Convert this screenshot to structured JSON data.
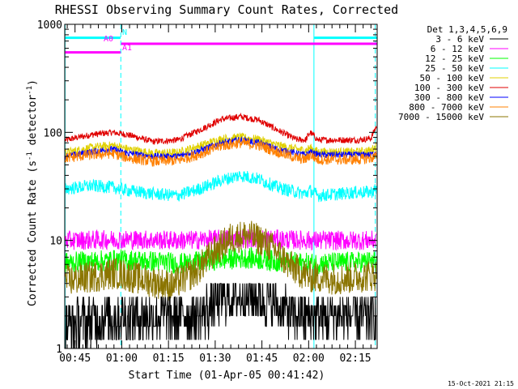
{
  "chart_data": {
    "type": "line",
    "title": "RHESSI Observing Summary Count Rates, Corrected",
    "xlabel": "Start Time (01-Apr-05 00:41:42)",
    "ylabel_main": "Corrected Count Rate (s",
    "ylabel_sup1": "-1",
    "ylabel_mid": " detector",
    "ylabel_sup2": "-1",
    "ylabel_end": ")",
    "yscale": "log",
    "xlim_min": [
      41.7,
      142.0
    ],
    "ylim": [
      1,
      1000
    ],
    "x_ticks": [
      {
        "t": 45,
        "label": "00:45"
      },
      {
        "t": 60,
        "label": "01:00"
      },
      {
        "t": 75,
        "label": "01:15"
      },
      {
        "t": 90,
        "label": "01:30"
      },
      {
        "t": 105,
        "label": "01:45"
      },
      {
        "t": 120,
        "label": "02:00"
      },
      {
        "t": 135,
        "label": "02:15"
      }
    ],
    "y_ticks": [
      {
        "v": 1,
        "label": "1"
      },
      {
        "v": 10,
        "label": "10"
      },
      {
        "v": 100,
        "label": "100"
      },
      {
        "v": 1000,
        "label": "1000"
      }
    ],
    "legend": {
      "placement": "right",
      "header": "Det 1,3,4,5,6,9",
      "entries": [
        {
          "label": "3 - 6 keV",
          "color": "#000000"
        },
        {
          "label": "6 - 12 keV",
          "color": "#ff00ff"
        },
        {
          "label": "12 - 25 keV",
          "color": "#00ff00"
        },
        {
          "label": "25 - 50 keV",
          "color": "#00ffff"
        },
        {
          "label": "50 - 100 keV",
          "color": "#e0d000"
        },
        {
          "label": "100 - 300 keV",
          "color": "#e00000"
        },
        {
          "label": "300 - 800 keV",
          "color": "#0000ff"
        },
        {
          "label": "800 - 7000 keV",
          "color": "#ff8000"
        },
        {
          "label": "7000 - 15000 keV",
          "color": "#8b7500"
        }
      ]
    },
    "flags": [
      {
        "label": "N",
        "color": "#00ffff",
        "segments": [
          [
            41.7,
            59.6
          ],
          [
            121.8,
            142.0
          ]
        ],
        "y": 750
      },
      {
        "label": "A0",
        "color": "#ff00ff",
        "segments": [
          [
            59.8,
            142.0
          ]
        ],
        "y": 660
      },
      {
        "label": "A1",
        "color": "#ff00ff",
        "segments": [
          [
            41.7,
            59.6
          ]
        ],
        "y": 550
      }
    ],
    "vlines": [
      {
        "t": 41.8,
        "color": "#00ffff",
        "style": "solid"
      },
      {
        "t": 59.7,
        "color": "#00ffff",
        "style": "dashed"
      },
      {
        "t": 121.7,
        "color": "#00ffff",
        "style": "solid"
      },
      {
        "t": 141.4,
        "color": "#00ffff",
        "style": "dashed"
      }
    ],
    "series": [
      {
        "color": "#e00000",
        "noise": 0.03,
        "points": [
          [
            42,
            85
          ],
          [
            50,
            95
          ],
          [
            57,
            100
          ],
          [
            62,
            95
          ],
          [
            70,
            82
          ],
          [
            78,
            85
          ],
          [
            85,
            105
          ],
          [
            92,
            132
          ],
          [
            98,
            140
          ],
          [
            104,
            130
          ],
          [
            110,
            105
          ],
          [
            116,
            86
          ],
          [
            119,
            85
          ],
          [
            120.5,
            100
          ],
          [
            123,
            85
          ],
          [
            130,
            85
          ],
          [
            136,
            85
          ],
          [
            140,
            88
          ],
          [
            141.8,
            115
          ]
        ]
      },
      {
        "color": "#e0d000",
        "noise": 0.04,
        "points": [
          [
            42,
            65
          ],
          [
            50,
            72
          ],
          [
            57,
            76
          ],
          [
            62,
            70
          ],
          [
            70,
            64
          ],
          [
            78,
            65
          ],
          [
            85,
            75
          ],
          [
            92,
            87
          ],
          [
            98,
            90
          ],
          [
            104,
            86
          ],
          [
            110,
            76
          ],
          [
            116,
            70
          ],
          [
            119,
            68
          ],
          [
            120.5,
            72
          ],
          [
            123,
            66
          ],
          [
            130,
            66
          ],
          [
            136,
            66
          ],
          [
            140,
            68
          ],
          [
            141.8,
            75
          ]
        ]
      },
      {
        "color": "#0000ff",
        "noise": 0.03,
        "points": [
          [
            42,
            60
          ],
          [
            50,
            66
          ],
          [
            57,
            70
          ],
          [
            62,
            64
          ],
          [
            70,
            60
          ],
          [
            78,
            60
          ],
          [
            85,
            68
          ],
          [
            92,
            80
          ],
          [
            98,
            85
          ],
          [
            104,
            80
          ],
          [
            110,
            70
          ],
          [
            116,
            64
          ],
          [
            119,
            62
          ],
          [
            120.5,
            66
          ],
          [
            123,
            62
          ],
          [
            130,
            62
          ],
          [
            136,
            62
          ],
          [
            140,
            62
          ],
          [
            141.8,
            66
          ]
        ]
      },
      {
        "color": "#ff8000",
        "noise": 0.05,
        "points": [
          [
            42,
            58
          ],
          [
            50,
            62
          ],
          [
            57,
            64
          ],
          [
            62,
            58
          ],
          [
            70,
            54
          ],
          [
            78,
            55
          ],
          [
            85,
            63
          ],
          [
            92,
            75
          ],
          [
            98,
            80
          ],
          [
            104,
            76
          ],
          [
            110,
            66
          ],
          [
            116,
            58
          ],
          [
            119,
            56
          ],
          [
            120.5,
            62
          ],
          [
            123,
            56
          ],
          [
            130,
            56
          ],
          [
            136,
            56
          ],
          [
            140,
            58
          ],
          [
            141.8,
            60
          ]
        ]
      },
      {
        "color": "#00ffff",
        "noise": 0.06,
        "points": [
          [
            42,
            30
          ],
          [
            50,
            32
          ],
          [
            57,
            31
          ],
          [
            62,
            29
          ],
          [
            70,
            27
          ],
          [
            78,
            26
          ],
          [
            85,
            30
          ],
          [
            92,
            36
          ],
          [
            98,
            40
          ],
          [
            104,
            37
          ],
          [
            110,
            31
          ],
          [
            116,
            28
          ],
          [
            119,
            27
          ],
          [
            120.5,
            29
          ],
          [
            123,
            26
          ],
          [
            130,
            27
          ],
          [
            136,
            28
          ],
          [
            140,
            28
          ],
          [
            141.8,
            30
          ]
        ]
      },
      {
        "color": "#ff00ff",
        "noise": 0.09,
        "points": [
          [
            42,
            10
          ],
          [
            60,
            10.2
          ],
          [
            80,
            10
          ],
          [
            100,
            10.5
          ],
          [
            120,
            10
          ],
          [
            141.8,
            10
          ]
        ]
      },
      {
        "color": "#00ff00",
        "noise": 0.1,
        "points": [
          [
            42,
            6.2
          ],
          [
            60,
            6.6
          ],
          [
            70,
            6.4
          ],
          [
            80,
            6.1
          ],
          [
            90,
            6.6
          ],
          [
            100,
            6.9
          ],
          [
            110,
            6.4
          ],
          [
            120,
            6.1
          ],
          [
            141.8,
            6.4
          ]
        ]
      },
      {
        "color": "#8b7500",
        "noise": 0.15,
        "points": [
          [
            42,
            4.2
          ],
          [
            58,
            5.0
          ],
          [
            66,
            4.4
          ],
          [
            76,
            3.8
          ],
          [
            84,
            5.2
          ],
          [
            90,
            8.0
          ],
          [
            95,
            10.5
          ],
          [
            100,
            11.2
          ],
          [
            105,
            10.0
          ],
          [
            110,
            7.8
          ],
          [
            114,
            5.8
          ],
          [
            120,
            4.6
          ],
          [
            130,
            4.4
          ],
          [
            141.8,
            4.8
          ]
        ]
      },
      {
        "color": "#000000",
        "noise": 0.25,
        "points": [
          [
            42,
            1.6
          ],
          [
            55,
            2.0
          ],
          [
            60,
            2.0
          ],
          [
            80,
            2.0
          ],
          [
            85,
            2.0
          ],
          [
            92,
            3.0
          ],
          [
            100,
            3.2
          ],
          [
            108,
            2.8
          ],
          [
            115,
            2.0
          ],
          [
            141.8,
            2.0
          ]
        ]
      }
    ]
  },
  "footer": {
    "timestamp": "15-Oct-2021 21:15"
  }
}
